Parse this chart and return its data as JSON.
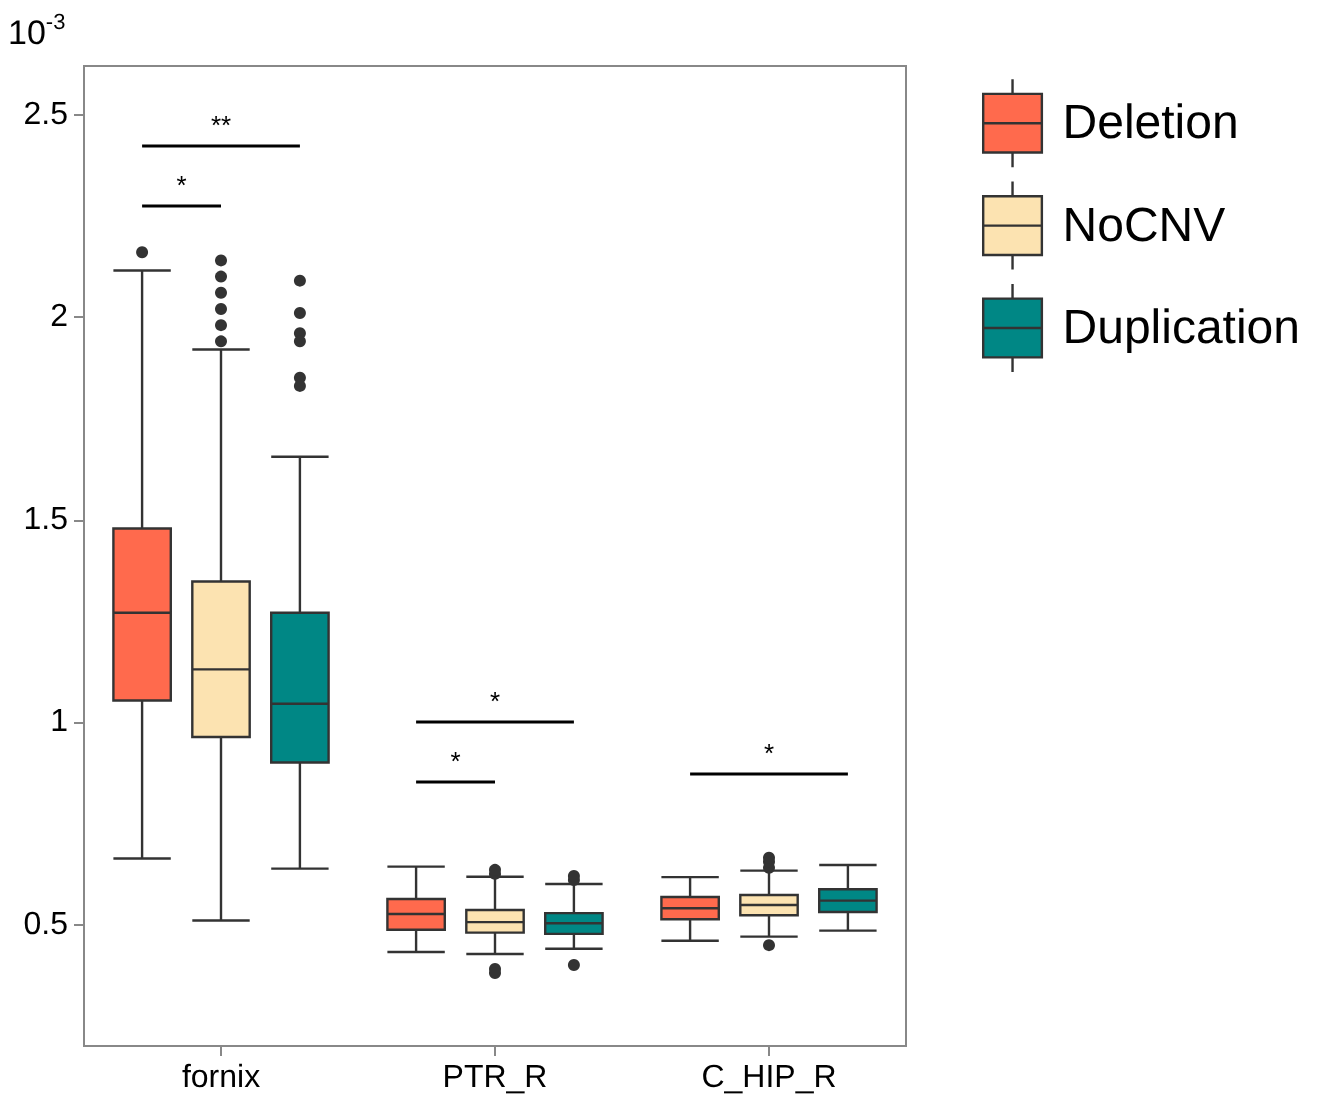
{
  "chart_data": {
    "type": "box",
    "ylabel": "10$^{-3}$",
    "categories": [
      "fornix",
      "PTR_R",
      "C_HIP_R"
    ],
    "ylim": [
      0.2,
      2.62
    ],
    "yticks": [
      0.5,
      1.0,
      1.5,
      2.0,
      2.5
    ],
    "grid": false,
    "legend": "top right",
    "series": [
      {
        "name": "Deletion",
        "color": "#ff6a4d",
        "boxes": [
          {
            "low": 0.663,
            "q1": 1.053,
            "median": 1.27,
            "q3": 1.478,
            "high": 2.115,
            "outliers": [
              2.16
            ]
          },
          {
            "low": 0.432,
            "q1": 0.487,
            "median": 0.526,
            "q3": 0.563,
            "high": 0.643
          },
          {
            "low": 0.46,
            "q1": 0.513,
            "median": 0.54,
            "q3": 0.568,
            "high": 0.617
          }
        ]
      },
      {
        "name": "NoCNV",
        "color": "#fce3b1",
        "boxes": [
          {
            "low": 0.51,
            "q1": 0.963,
            "median": 1.13,
            "q3": 1.347,
            "high": 1.92,
            "outliers": [
              1.94,
              1.98,
              2.02,
              2.06,
              2.1,
              2.14
            ]
          },
          {
            "low": 0.427,
            "q1": 0.48,
            "median": 0.506,
            "q3": 0.536,
            "high": 0.618,
            "outliers": [
              0.625,
              0.635,
              0.39,
              0.38
            ]
          },
          {
            "low": 0.47,
            "q1": 0.523,
            "median": 0.548,
            "q3": 0.573,
            "high": 0.633,
            "outliers": [
              0.64,
              0.655,
              0.665,
              0.449
            ]
          }
        ]
      },
      {
        "name": "Duplication",
        "color": "#008785",
        "boxes": [
          {
            "low": 0.638,
            "q1": 0.9,
            "median": 1.045,
            "q3": 1.27,
            "high": 1.655,
            "outliers": [
              2.09,
              2.01,
              1.96,
              1.94,
              1.85,
              1.83
            ]
          },
          {
            "low": 0.44,
            "q1": 0.477,
            "median": 0.503,
            "q3": 0.528,
            "high": 0.6,
            "outliers": [
              0.61,
              0.62,
              0.4
            ]
          },
          {
            "low": 0.485,
            "q1": 0.531,
            "median": 0.559,
            "q3": 0.587,
            "high": 0.647
          }
        ]
      }
    ],
    "annotations": [
      "**",
      "*",
      "*",
      "*",
      "*"
    ]
  }
}
